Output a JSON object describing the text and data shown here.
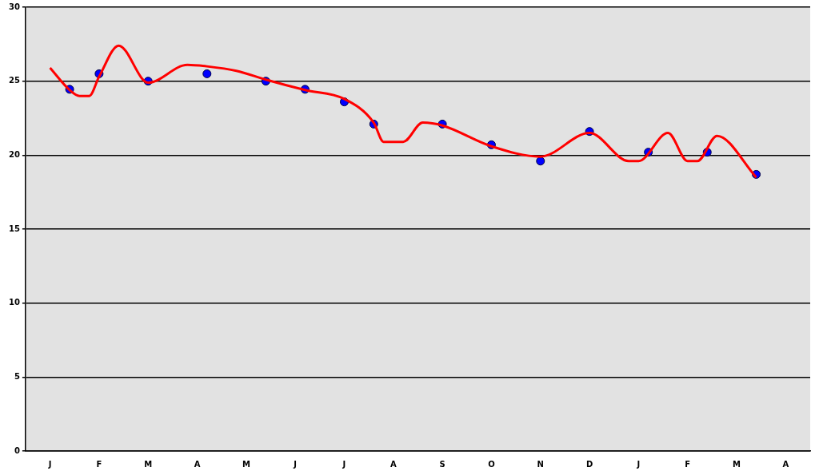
{
  "chart_data": {
    "type": "line",
    "categories": [
      null,
      null,
      "J",
      null,
      null,
      null,
      null,
      "F",
      null,
      null,
      null,
      null,
      "M",
      null,
      null,
      null,
      null,
      "A",
      null,
      null,
      null,
      null,
      "M",
      null,
      null,
      null,
      null,
      "J",
      null,
      null,
      null,
      null,
      "J",
      null,
      null,
      null,
      null,
      "A",
      null,
      null,
      null,
      null,
      "S",
      null,
      null,
      null,
      null,
      "O",
      null,
      null,
      null,
      null,
      "N",
      null,
      null,
      null,
      null,
      "D",
      null,
      null,
      null,
      null,
      "J",
      null,
      null,
      null,
      null,
      "F",
      null,
      null,
      null,
      null,
      "M",
      null,
      null,
      null,
      null,
      "A",
      null,
      null
    ],
    "ylim": [
      0,
      30
    ],
    "yticks": [
      0,
      5,
      10,
      15,
      20,
      25,
      30
    ],
    "grid": "y",
    "legend": false,
    "series": [
      {
        "color": "#ff0000",
        "marker": "none",
        "line_style": "solid",
        "values": [
          null,
          null,
          25.9,
          null,
          24.4,
          24.0,
          24.0,
          25.3,
          null,
          27.4,
          null,
          null,
          24.9,
          null,
          null,
          null,
          26.1,
          null,
          26.0,
          null,
          null,
          25.7,
          null,
          null,
          25.1,
          null,
          null,
          null,
          24.4,
          null,
          null,
          null,
          23.8,
          null,
          null,
          22.2,
          20.9,
          null,
          20.9,
          null,
          22.2,
          null,
          22.0,
          null,
          null,
          null,
          null,
          20.6,
          null,
          null,
          null,
          null,
          19.9,
          null,
          null,
          null,
          null,
          21.5,
          null,
          null,
          null,
          19.6,
          19.6,
          null,
          null,
          21.5,
          null,
          19.6,
          19.6,
          null,
          21.3,
          null,
          null,
          null,
          18.5,
          null,
          null,
          null,
          null,
          null
        ]
      },
      {
        "type": "scatter",
        "color": "#0000ff",
        "marker": "circle",
        "values": [
          null,
          null,
          null,
          null,
          24.45,
          null,
          null,
          25.5,
          null,
          null,
          null,
          null,
          25.0,
          null,
          null,
          null,
          null,
          null,
          25.5,
          null,
          null,
          null,
          null,
          null,
          25.0,
          null,
          null,
          null,
          24.45,
          null,
          null,
          null,
          23.6,
          null,
          null,
          22.1,
          null,
          null,
          null,
          null,
          null,
          null,
          22.1,
          null,
          null,
          null,
          null,
          20.7,
          null,
          null,
          null,
          null,
          19.6,
          null,
          null,
          null,
          null,
          21.6,
          null,
          null,
          null,
          null,
          null,
          20.2,
          null,
          null,
          null,
          null,
          null,
          20.2,
          null,
          null,
          null,
          null,
          18.7,
          null,
          null,
          null,
          null,
          null
        ]
      }
    ]
  }
}
